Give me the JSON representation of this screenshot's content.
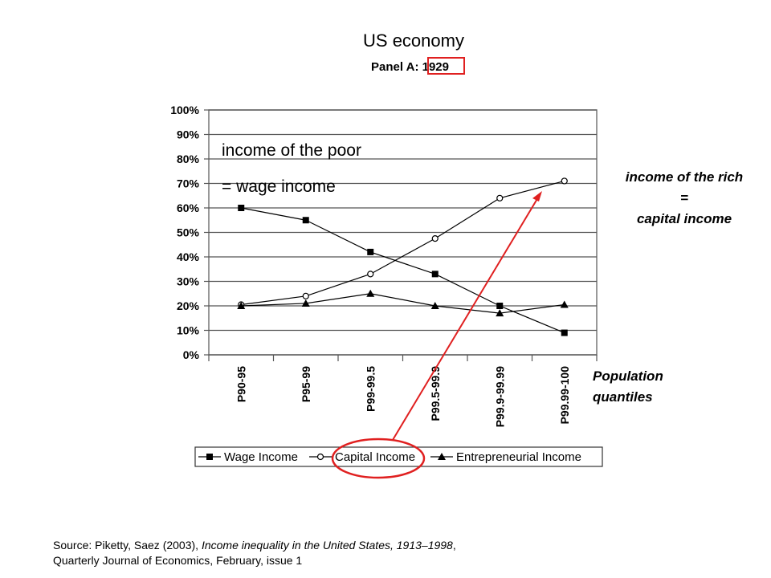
{
  "slide": {
    "title": "US economy",
    "panel_label": "Panel A: 1929",
    "annotation_poor_line1": "income of the poor",
    "annotation_poor_line2": "= wage income",
    "annotation_rich_line1": "income of the rich",
    "annotation_rich_line2": "=",
    "annotation_rich_line3": "capital income",
    "population_label_line1": "Population",
    "population_label_line2": "quantiles",
    "source_prefix": "Source: Piketty, Saez (2003), ",
    "source_title": "Income inequality in the United States, 1913–1998",
    "source_suffix": ",",
    "source_line2": "Quarterly Journal of Economics, February, issue 1",
    "highlight_color": "#e02020"
  },
  "chart_data": {
    "type": "line",
    "title": "Panel A: 1929",
    "categories": [
      "P90-95",
      "P95-99",
      "P99-99.5",
      "P99.5-99.9",
      "P99.9-99.99",
      "P99.99-100"
    ],
    "ylim": [
      0,
      100
    ],
    "y_ticks": [
      "0%",
      "10%",
      "20%",
      "30%",
      "40%",
      "50%",
      "60%",
      "70%",
      "80%",
      "90%",
      "100%"
    ],
    "grid": true,
    "legend_position": "bottom",
    "series": [
      {
        "name": "Wage Income",
        "marker": "filled-square",
        "values": [
          60,
          55,
          42,
          33,
          20,
          9
        ]
      },
      {
        "name": "Capital Income",
        "marker": "open-circle",
        "values": [
          20.5,
          24,
          33,
          47.5,
          64,
          71
        ]
      },
      {
        "name": "Entrepreneurial Income",
        "marker": "filled-triangle",
        "values": [
          20,
          21,
          25,
          20,
          17,
          20.5
        ]
      }
    ]
  }
}
